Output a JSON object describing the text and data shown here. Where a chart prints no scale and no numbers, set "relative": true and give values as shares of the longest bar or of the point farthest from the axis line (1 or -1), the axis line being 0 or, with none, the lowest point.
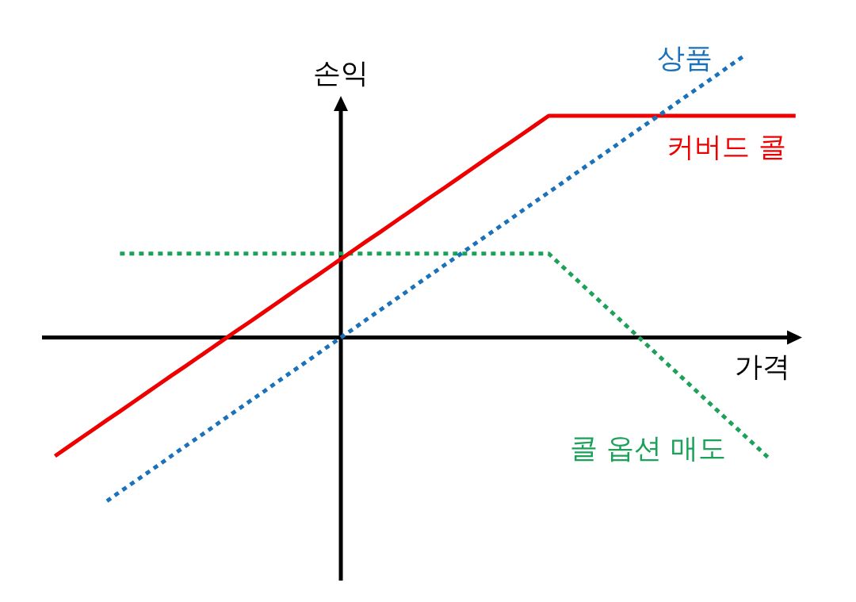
{
  "chart_data": {
    "type": "line",
    "relative": true,
    "xlabel": "가격",
    "ylabel": "손익",
    "marker": "none",
    "categories": [
      null,
      null,
      null,
      null,
      null,
      null,
      null,
      null,
      null,
      null,
      null,
      null,
      null,
      null,
      null,
      null,
      null,
      null,
      null,
      null,
      null,
      null,
      null,
      null,
      null,
      null,
      null,
      null,
      null,
      null,
      null,
      null,
      null,
      null,
      null,
      null,
      null,
      null,
      null,
      null,
      null,
      null,
      null,
      null,
      null,
      null,
      null,
      null,
      null,
      null,
      null,
      null,
      null,
      null,
      null,
      null,
      null,
      null
    ],
    "series": [
      {
        "name": "상품",
        "color": "#1b72bb",
        "line_style": "dotted",
        "values": [
          null,
          null,
          null,
          null,
          -0.581,
          -0.548,
          -0.516,
          -0.484,
          -0.452,
          -0.419,
          -0.387,
          -0.355,
          -0.323,
          -0.29,
          -0.258,
          -0.226,
          -0.194,
          -0.161,
          -0.129,
          -0.097,
          -0.065,
          -0.032,
          0,
          0.032,
          0.065,
          0.097,
          0.129,
          0.161,
          0.194,
          0.226,
          0.258,
          0.29,
          0.323,
          0.355,
          0.387,
          0.419,
          0.452,
          0.484,
          0.516,
          0.548,
          0.581,
          0.613,
          0.645,
          0.677,
          0.71,
          0.742,
          0.774,
          0.806,
          0.839,
          0.871,
          0.903,
          0.935,
          0.968,
          1,
          null,
          null,
          null,
          null
        ]
      },
      {
        "name": "커버드 콜",
        "color": "#ee0000",
        "line_style": "solid",
        "values": [
          -0.421,
          -0.389,
          -0.357,
          -0.325,
          -0.293,
          -0.262,
          -0.23,
          -0.198,
          -0.166,
          -0.134,
          -0.103,
          -0.071,
          -0.039,
          -0.007,
          0.025,
          0.056,
          0.088,
          0.12,
          0.152,
          0.184,
          0.215,
          0.247,
          0.279,
          0.311,
          0.343,
          0.374,
          0.406,
          0.438,
          0.47,
          0.502,
          0.533,
          0.565,
          0.597,
          0.629,
          0.661,
          0.692,
          0.724,
          0.756,
          0.788,
          0.788,
          0.788,
          0.788,
          0.788,
          0.788,
          0.788,
          0.788,
          0.788,
          0.788,
          0.788,
          0.788,
          0.788,
          0.788,
          0.788,
          0.788,
          0.788,
          0.788,
          0.788,
          0.788
        ]
      },
      {
        "name": "콜 옵션 매도",
        "color": "#1ba158",
        "line_style": "dotted",
        "values": [
          null,
          null,
          null,
          null,
          null,
          0.298,
          0.298,
          0.298,
          0.298,
          0.298,
          0.298,
          0.298,
          0.298,
          0.298,
          0.298,
          0.298,
          0.298,
          0.298,
          0.298,
          0.298,
          0.298,
          0.298,
          0.298,
          0.298,
          0.298,
          0.298,
          0.298,
          0.298,
          0.298,
          0.298,
          0.298,
          0.298,
          0.298,
          0.298,
          0.298,
          0.298,
          0.298,
          0.298,
          0.298,
          0.255,
          0.212,
          0.169,
          0.126,
          0.084,
          0.041,
          -0.002,
          -0.045,
          -0.088,
          -0.131,
          -0.174,
          -0.217,
          -0.26,
          -0.303,
          -0.345,
          -0.388,
          -0.431,
          null,
          null
        ]
      }
    ]
  }
}
